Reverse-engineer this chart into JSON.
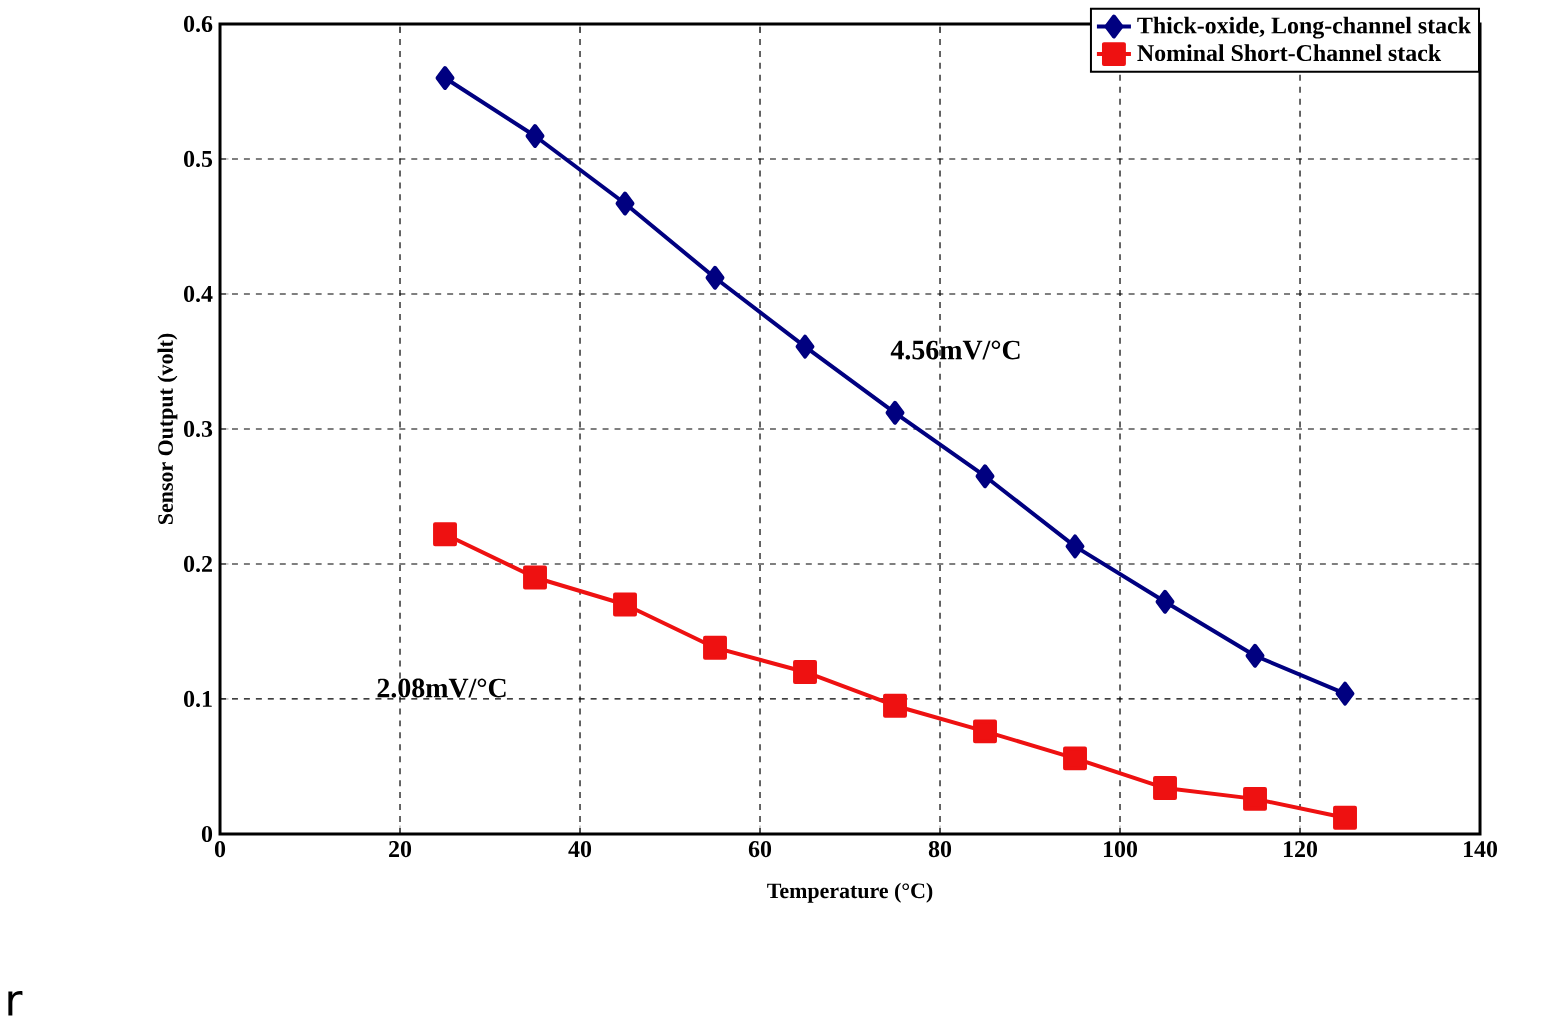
{
  "chart_data": {
    "type": "line",
    "xlabel": "Temperature (°C)",
    "ylabel": "Sensor Output (volt)",
    "x": [
      25,
      35,
      45,
      55,
      65,
      75,
      85,
      95,
      105,
      115,
      125
    ],
    "series": [
      {
        "name": "Thick-oxide, Long-channel stack",
        "color": "#000080",
        "marker": "diamond",
        "values": [
          0.56,
          0.517,
          0.467,
          0.412,
          0.361,
          0.312,
          0.265,
          0.213,
          0.172,
          0.132,
          0.104
        ]
      },
      {
        "name": "Nominal Short-Channel stack",
        "color": "#ee1111",
        "marker": "square",
        "values": [
          0.222,
          0.19,
          0.17,
          0.138,
          0.12,
          0.095,
          0.076,
          0.056,
          0.034,
          0.026,
          0.012
        ]
      }
    ],
    "xlim": [
      0,
      140
    ],
    "ylim": [
      0,
      0.6
    ],
    "xticks": [
      0,
      20,
      40,
      60,
      80,
      100,
      120,
      140
    ],
    "yticks": [
      0,
      0.1,
      0.2,
      0.3,
      0.4,
      0.5,
      0.6
    ],
    "grid": true,
    "legend": "top right",
    "line_style": "solid",
    "annotations": [
      "4.56mV/°C",
      "2.08mV/°C",
      "r"
    ]
  }
}
